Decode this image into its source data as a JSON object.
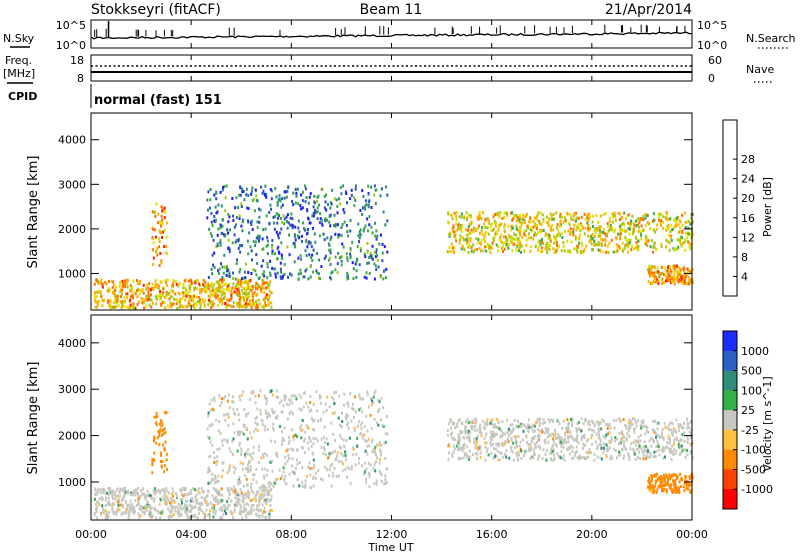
{
  "header": {
    "station": "Stokkseyri (fitACF)",
    "beam": "Beam 11",
    "date": "21/Apr/2014"
  },
  "strip_panels": {
    "nsky": {
      "label": "N.Sky",
      "right_label": "N.Search",
      "left_ticks": [
        "10^5",
        "10^0"
      ],
      "right_ticks": [
        "10^5",
        "10^0"
      ]
    },
    "freq": {
      "label_line1": "Freq.",
      "label_line2": "[MHz]",
      "right_label": "Nave",
      "left_ticks": [
        "18",
        "8"
      ],
      "right_ticks": [
        "60",
        "0"
      ]
    },
    "cpid": {
      "label": "CPID",
      "mode_text": "normal (fast) 151"
    }
  },
  "x_axis": {
    "label": "Time UT",
    "ticks": [
      "00:00",
      "04:00",
      "08:00",
      "12:00",
      "16:00",
      "20:00",
      "00:00"
    ]
  },
  "chart_data": [
    {
      "type": "heatmap",
      "title": "",
      "xlabel": "Time UT",
      "ylabel": "Slant Range [km]",
      "xlim_hours": [
        0,
        24
      ],
      "ylim_km": [
        180,
        4600
      ],
      "y_ticks": [
        "1000",
        "2000",
        "3000",
        "4000"
      ],
      "colorbar": {
        "label": "Power [dB]",
        "ticks": [
          "4",
          "8",
          "12",
          "16",
          "20",
          "24",
          "28"
        ],
        "colors": [
          "#1a1aff",
          "#2a4fbf",
          "#2e8a7a",
          "#3aa64a",
          "#a0c818",
          "#e0e000",
          "#ffb000",
          "#ff7000",
          "#ff2000"
        ]
      },
      "features": [
        {
          "name": "near-range E-region scatter",
          "t": [
            0.1,
            7.2
          ],
          "range_km": [
            250,
            900
          ],
          "power_db": 22
        },
        {
          "name": "morning streak",
          "t": [
            2.4,
            3.0
          ],
          "range_km": [
            1200,
            2600
          ],
          "power_db": 24
        },
        {
          "name": "sweeping backscatter arc",
          "t": [
            4.6,
            11.8
          ],
          "range_km": [
            900,
            3000
          ],
          "power_db": 8
        },
        {
          "name": "afternoon-evening F-region",
          "t": [
            14.2,
            24.0
          ],
          "range_km": [
            1500,
            2400
          ],
          "power_db": 20
        },
        {
          "name": "late-evening near-range",
          "t": [
            22.2,
            24.0
          ],
          "range_km": [
            800,
            1200
          ],
          "power_db": 24
        }
      ]
    },
    {
      "type": "heatmap",
      "title": "",
      "xlabel": "Time UT",
      "ylabel": "Slant Range [km]",
      "xlim_hours": [
        0,
        24
      ],
      "ylim_km": [
        180,
        4600
      ],
      "y_ticks": [
        "1000",
        "2000",
        "3000",
        "4000"
      ],
      "colorbar": {
        "label": "Velocity [m s^-1]",
        "ticks": [
          "1000",
          "500",
          "100",
          "25",
          "-25",
          "-100",
          "-500",
          "-1000"
        ],
        "colors": [
          "#1a2cff",
          "#2a60c8",
          "#2e8e7a",
          "#34b04c",
          "#c8c8c0",
          "#ffc040",
          "#ff8a00",
          "#ff4000",
          "#ff0000"
        ]
      },
      "features": [
        {
          "name": "near-range ground scatter",
          "t": [
            0.1,
            7.2
          ],
          "range_km": [
            250,
            900
          ],
          "velocity": 0
        },
        {
          "name": "morning streak",
          "t": [
            2.4,
            3.0
          ],
          "range_km": [
            1200,
            2600
          ],
          "velocity": -400
        },
        {
          "name": "sweeping backscatter arc",
          "t": [
            4.6,
            11.8
          ],
          "range_km": [
            900,
            3000
          ],
          "velocity": 0
        },
        {
          "name": "afternoon-evening F-region",
          "t": [
            14.2,
            24.0
          ],
          "range_km": [
            1500,
            2400
          ],
          "velocity": 0
        },
        {
          "name": "late-evening near-range",
          "t": [
            22.2,
            24.0
          ],
          "range_km": [
            800,
            1200
          ],
          "velocity": -200
        }
      ]
    }
  ]
}
